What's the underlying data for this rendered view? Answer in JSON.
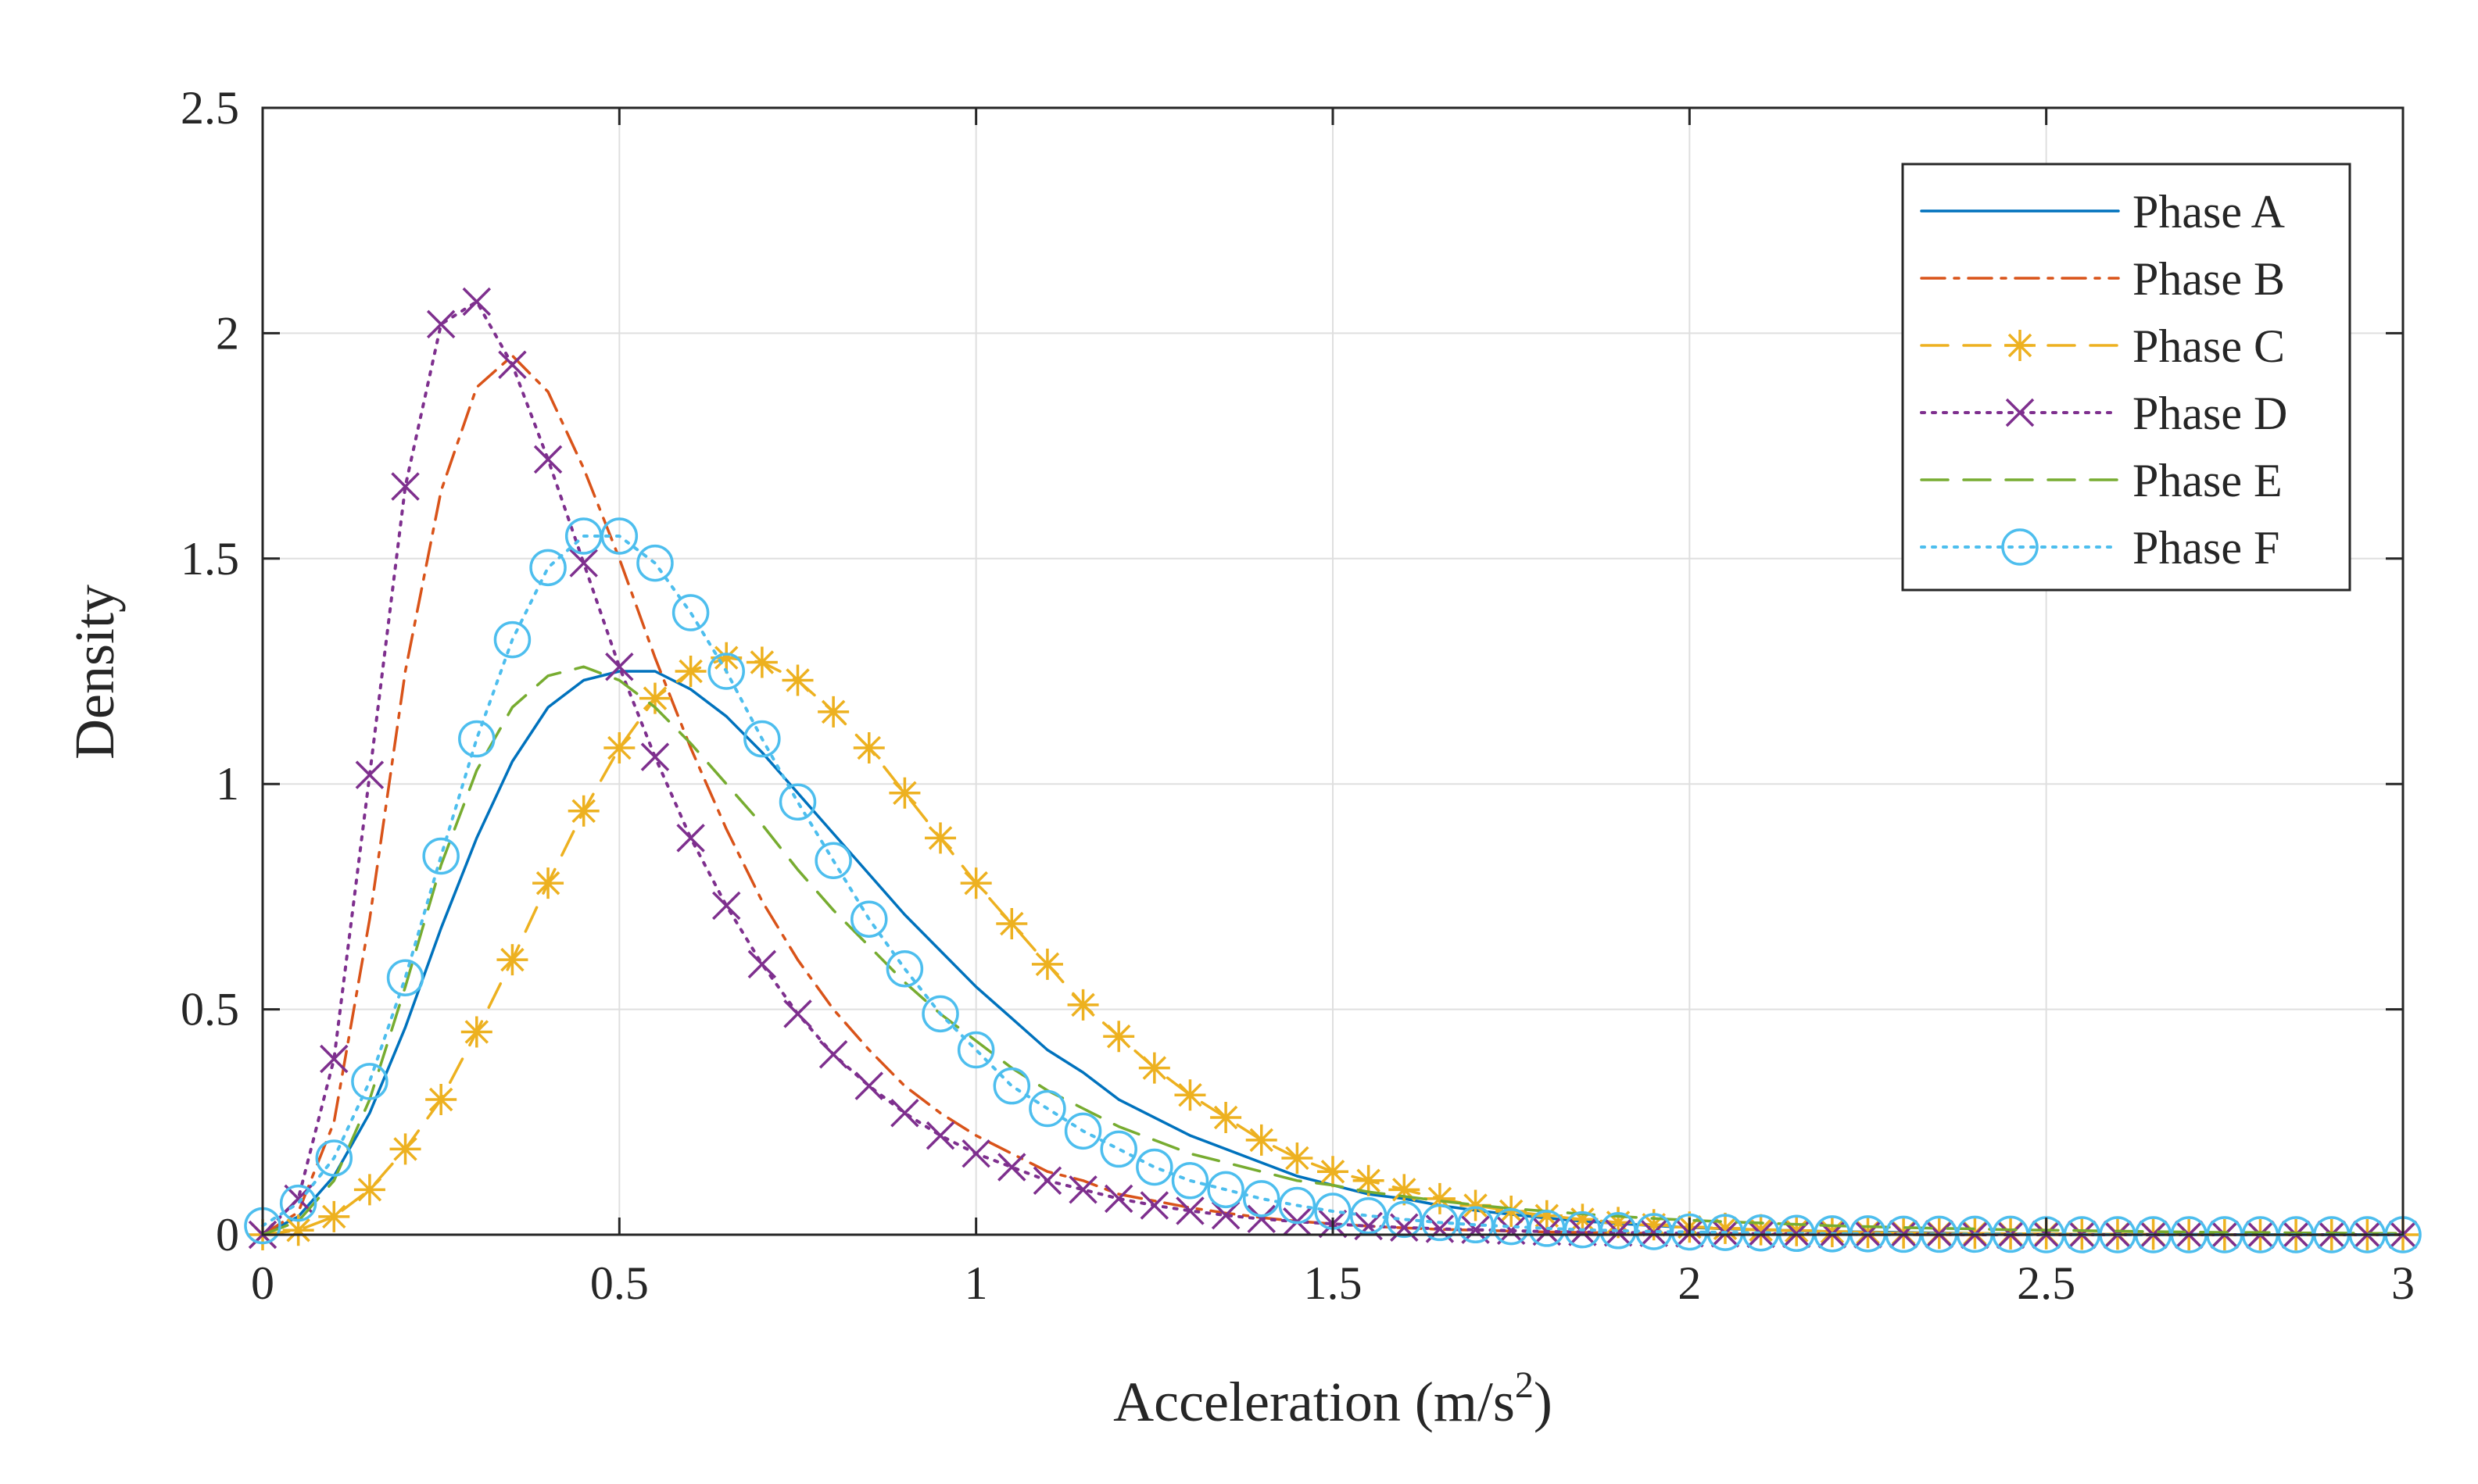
{
  "chart_data": {
    "type": "line",
    "title": "",
    "xlabel": "Acceleration (m/s",
    "xlabel_superscript": "2",
    "xlabel_suffix": ")",
    "ylabel": "Density",
    "xlim": [
      0,
      3
    ],
    "ylim": [
      0,
      2.5
    ],
    "xticks": [
      0,
      0.5,
      1,
      1.5,
      2,
      2.5,
      3
    ],
    "xtick_labels": [
      "0",
      "0.5",
      "1",
      "1.5",
      "2",
      "2.5",
      "3"
    ],
    "yticks": [
      0,
      0.5,
      1,
      1.5,
      2,
      2.5
    ],
    "ytick_labels": [
      "0",
      "0.5",
      "1",
      "1.5",
      "2",
      "2.5"
    ],
    "grid": true,
    "legend_position": "top-right",
    "x": [
      0,
      0.05,
      0.1,
      0.15,
      0.2,
      0.25,
      0.3,
      0.35,
      0.4,
      0.45,
      0.5,
      0.55,
      0.6,
      0.65,
      0.7,
      0.75,
      0.8,
      0.85,
      0.9,
      0.95,
      1.0,
      1.05,
      1.1,
      1.15,
      1.2,
      1.25,
      1.3,
      1.35,
      1.4,
      1.45,
      1.5,
      1.55,
      1.6,
      1.65,
      1.7,
      1.75,
      1.8,
      1.85,
      1.9,
      1.95,
      2.0,
      2.05,
      2.1,
      2.15,
      2.2,
      2.25,
      2.3,
      2.35,
      2.4,
      2.45,
      2.5,
      2.55,
      2.6,
      2.65,
      2.7,
      2.75,
      2.8,
      2.85,
      2.9,
      2.95,
      3.0
    ],
    "series": [
      {
        "name": "Phase A",
        "color": "#0072BD",
        "line_style": "solid",
        "marker": "none",
        "values": [
          0,
          0.04,
          0.13,
          0.27,
          0.46,
          0.68,
          0.88,
          1.05,
          1.17,
          1.23,
          1.25,
          1.25,
          1.21,
          1.15,
          1.07,
          0.98,
          0.89,
          0.8,
          0.71,
          0.63,
          0.55,
          0.48,
          0.41,
          0.36,
          0.3,
          0.26,
          0.22,
          0.19,
          0.16,
          0.13,
          0.11,
          0.09,
          0.08,
          0.065,
          0.054,
          0.045,
          0.037,
          0.03,
          0.025,
          0.02,
          0.016,
          0.013,
          0.011,
          0.009,
          0.007,
          0.006,
          0.005,
          0.004,
          0.003,
          0.002,
          0.002,
          0.001,
          0.001,
          0.001,
          0.001,
          0,
          0,
          0,
          0,
          0,
          0
        ]
      },
      {
        "name": "Phase B",
        "color": "#D95319",
        "line_style": "dashdot",
        "marker": "none",
        "values": [
          0,
          0.05,
          0.25,
          0.7,
          1.25,
          1.65,
          1.88,
          1.95,
          1.87,
          1.7,
          1.5,
          1.28,
          1.08,
          0.9,
          0.74,
          0.61,
          0.5,
          0.41,
          0.33,
          0.27,
          0.22,
          0.18,
          0.14,
          0.12,
          0.09,
          0.075,
          0.06,
          0.048,
          0.038,
          0.03,
          0.024,
          0.019,
          0.015,
          0.012,
          0.01,
          0.008,
          0.006,
          0.005,
          0.004,
          0.003,
          0.002,
          0.002,
          0.001,
          0.001,
          0.001,
          0,
          0,
          0,
          0,
          0,
          0,
          0,
          0,
          0,
          0,
          0,
          0,
          0,
          0,
          0,
          0
        ]
      },
      {
        "name": "Phase C",
        "color": "#EDB120",
        "line_style": "dashed",
        "marker": "asterisk",
        "values": [
          0,
          0.01,
          0.04,
          0.1,
          0.19,
          0.3,
          0.45,
          0.61,
          0.78,
          0.94,
          1.08,
          1.19,
          1.25,
          1.28,
          1.27,
          1.23,
          1.16,
          1.08,
          0.98,
          0.88,
          0.78,
          0.69,
          0.6,
          0.51,
          0.44,
          0.37,
          0.31,
          0.26,
          0.21,
          0.17,
          0.14,
          0.12,
          0.1,
          0.08,
          0.065,
          0.052,
          0.042,
          0.034,
          0.027,
          0.022,
          0.017,
          0.014,
          0.011,
          0.009,
          0.007,
          0.005,
          0.004,
          0.003,
          0.003,
          0.002,
          0.002,
          0.001,
          0.001,
          0.001,
          0,
          0,
          0,
          0,
          0,
          0,
          0
        ]
      },
      {
        "name": "Phase D",
        "color": "#7E2F8E",
        "line_style": "dotted",
        "marker": "x",
        "values": [
          0,
          0.08,
          0.39,
          1.02,
          1.66,
          2.02,
          2.07,
          1.93,
          1.72,
          1.49,
          1.26,
          1.06,
          0.88,
          0.73,
          0.6,
          0.49,
          0.4,
          0.33,
          0.27,
          0.22,
          0.18,
          0.15,
          0.12,
          0.1,
          0.08,
          0.065,
          0.053,
          0.043,
          0.035,
          0.029,
          0.024,
          0.019,
          0.016,
          0.013,
          0.011,
          0.009,
          0.007,
          0.006,
          0.005,
          0.004,
          0.003,
          0.003,
          0.002,
          0.002,
          0.001,
          0.001,
          0.001,
          0.001,
          0,
          0,
          0,
          0,
          0,
          0,
          0,
          0,
          0,
          0,
          0,
          0,
          0
        ]
      },
      {
        "name": "Phase E",
        "color": "#77AC30",
        "line_style": "dashed",
        "marker": "none",
        "values": [
          0,
          0.03,
          0.12,
          0.3,
          0.55,
          0.82,
          1.03,
          1.17,
          1.24,
          1.26,
          1.23,
          1.17,
          1.09,
          1.0,
          0.91,
          0.81,
          0.72,
          0.64,
          0.56,
          0.49,
          0.43,
          0.37,
          0.32,
          0.28,
          0.24,
          0.21,
          0.18,
          0.16,
          0.14,
          0.12,
          0.11,
          0.095,
          0.085,
          0.075,
          0.066,
          0.058,
          0.052,
          0.046,
          0.041,
          0.036,
          0.032,
          0.029,
          0.026,
          0.023,
          0.02,
          0.018,
          0.016,
          0.014,
          0.013,
          0.011,
          0.01,
          0.009,
          0.008,
          0.007,
          0.006,
          0.005,
          0.005,
          0.004,
          0.004,
          0.003,
          0.003
        ]
      },
      {
        "name": "Phase F",
        "color": "#4DBEEE",
        "line_style": "dotted",
        "marker": "circle",
        "values": [
          0.02,
          0.07,
          0.17,
          0.34,
          0.57,
          0.84,
          1.1,
          1.32,
          1.48,
          1.55,
          1.55,
          1.49,
          1.38,
          1.25,
          1.1,
          0.96,
          0.83,
          0.7,
          0.59,
          0.49,
          0.41,
          0.33,
          0.28,
          0.23,
          0.19,
          0.15,
          0.12,
          0.1,
          0.08,
          0.065,
          0.052,
          0.042,
          0.034,
          0.027,
          0.022,
          0.018,
          0.014,
          0.011,
          0.009,
          0.007,
          0.006,
          0.005,
          0.004,
          0.003,
          0.002,
          0.002,
          0.001,
          0.001,
          0.001,
          0.001,
          0,
          0,
          0,
          0,
          0,
          0,
          0,
          0,
          0,
          0,
          0
        ]
      }
    ]
  }
}
